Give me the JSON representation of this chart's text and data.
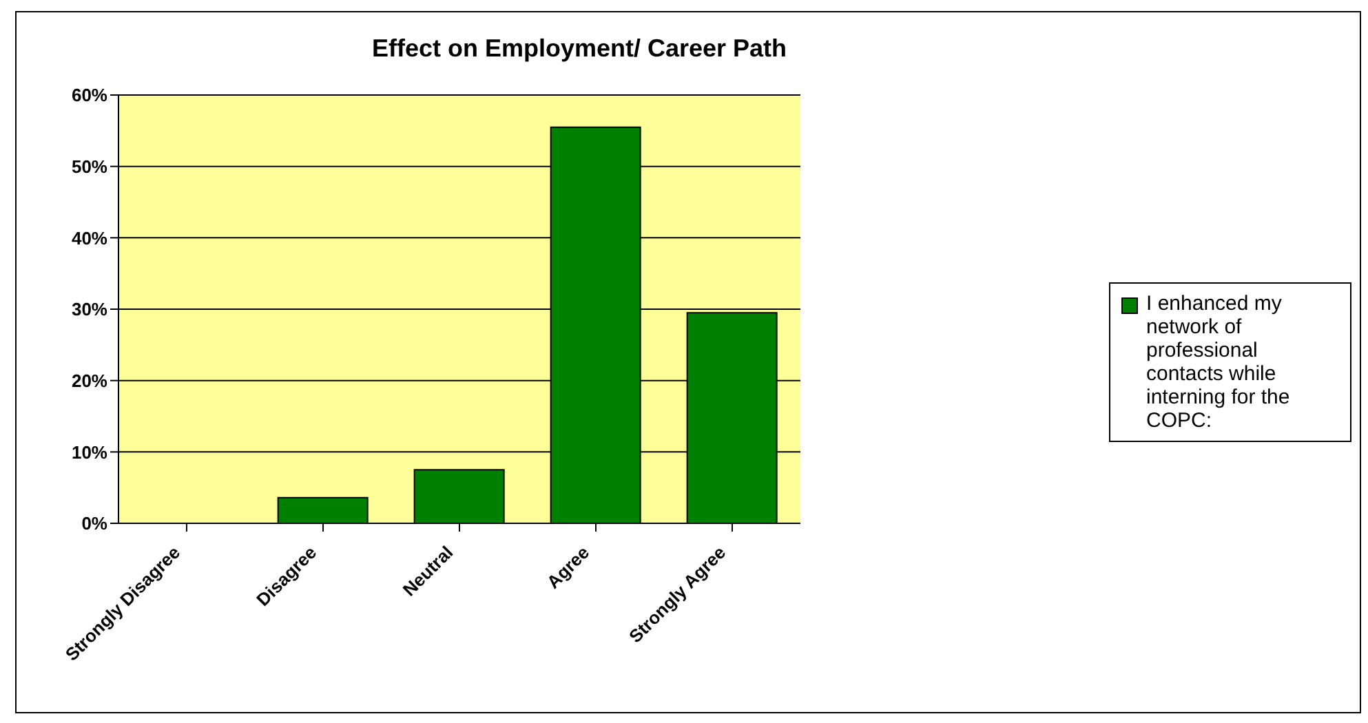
{
  "chart_data": {
    "type": "bar",
    "title": "Effect on Employment/ Career Path",
    "categories": [
      "Strongly Disagree",
      "Disagree",
      "Neutral",
      "Agree",
      "Strongly Agree"
    ],
    "series": [
      {
        "name": "I enhanced my network of professional contacts while interning for the COPC:",
        "color": "#008000",
        "values": [
          0,
          3.6,
          7.5,
          55.5,
          29.5
        ]
      }
    ],
    "ylim": [
      0,
      60
    ],
    "yticks": [
      {
        "value": 0,
        "label": "0%"
      },
      {
        "value": 10,
        "label": "10%"
      },
      {
        "value": 20,
        "label": "20%"
      },
      {
        "value": 30,
        "label": "30%"
      },
      {
        "value": 40,
        "label": "40%"
      },
      {
        "value": 50,
        "label": "50%"
      },
      {
        "value": 60,
        "label": "60%"
      }
    ],
    "grid": "y",
    "legend": "right"
  }
}
